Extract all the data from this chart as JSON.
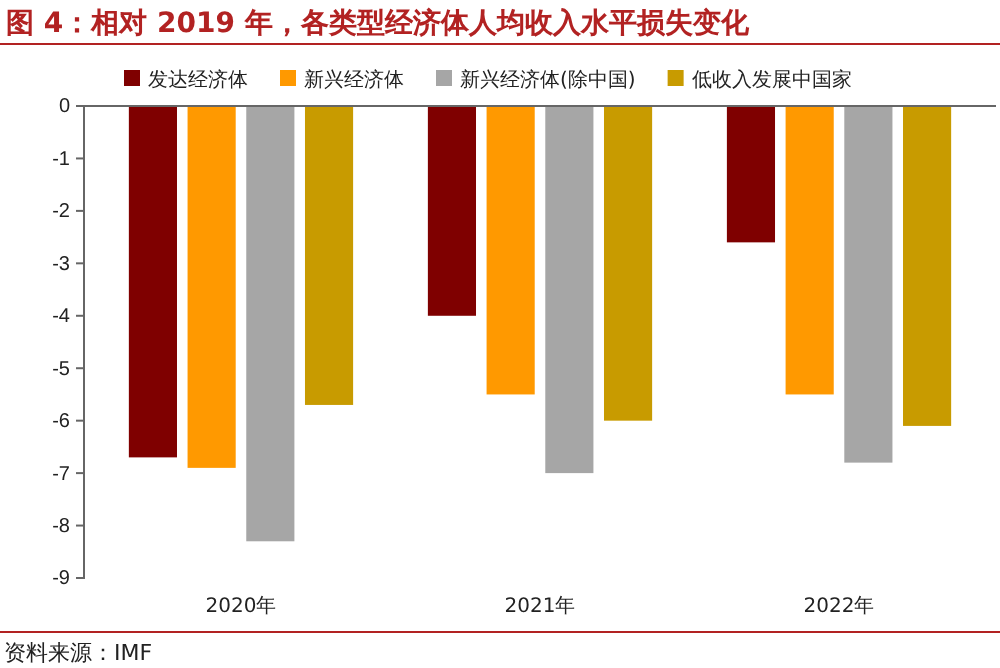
{
  "chart_data": {
    "type": "bar",
    "title": "图 4：相对 2019 年，各类型经济体人均收入水平损失变化",
    "categories": [
      "2020年",
      "2021年",
      "2022年"
    ],
    "series": [
      {
        "name": "发达经济体",
        "color": "#7f0000",
        "values": [
          -6.7,
          -4.0,
          -2.6
        ]
      },
      {
        "name": "新兴经济体",
        "color": "#ff9900",
        "values": [
          -6.9,
          -5.5,
          -5.5
        ]
      },
      {
        "name": "新兴经济体(除中国)",
        "color": "#a6a6a6",
        "values": [
          -8.3,
          -7.0,
          -6.8
        ]
      },
      {
        "name": "低收入发展中国家",
        "color": "#c89b00",
        "values": [
          -5.7,
          -6.0,
          -6.1
        ]
      }
    ],
    "ylim": [
      -9,
      0
    ],
    "yticks": [
      0,
      -1,
      -2,
      -3,
      -4,
      -5,
      -6,
      -7,
      -8,
      -9
    ],
    "grid": false,
    "legend": "top",
    "annotations": [
      "资料来源：IMF"
    ]
  }
}
